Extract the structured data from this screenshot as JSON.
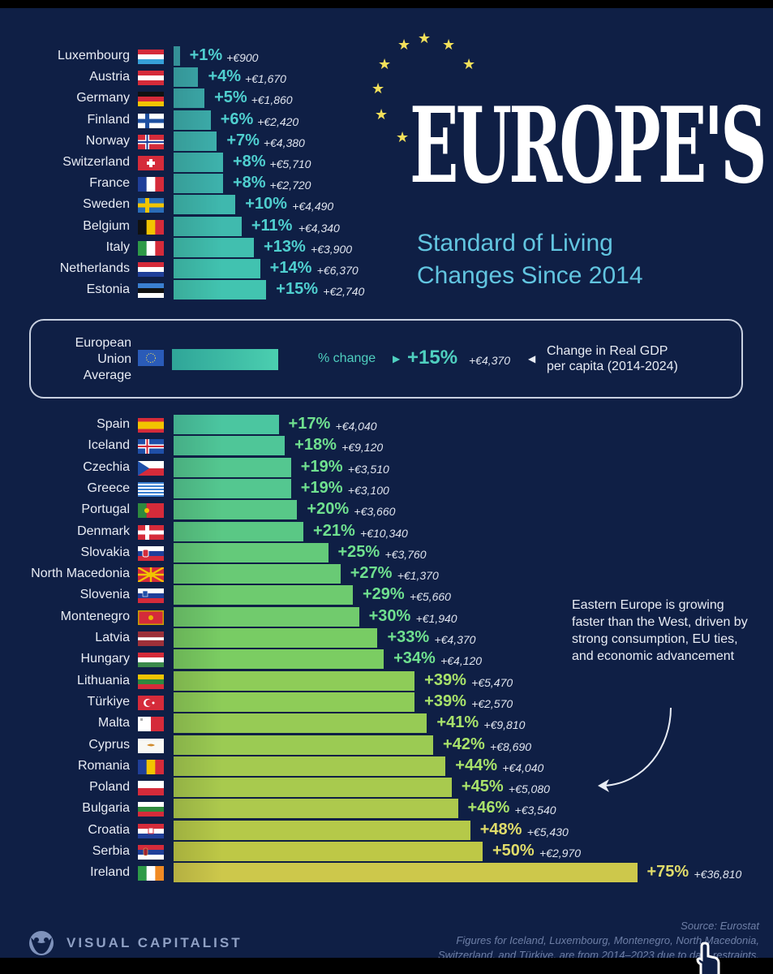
{
  "header": {
    "title": "EUROPE'S",
    "subtitle_line1": "Standard of Living",
    "subtitle_line2": "Changes Since 2014"
  },
  "eu_average": {
    "label_line1": "European",
    "label_line2": "Union",
    "label_line3": "Average",
    "pct_label": "% change",
    "pct": "+15%",
    "eur": "+€4,370",
    "description_line1": "Change in Real GDP",
    "description_line2": "per capita (2014-2024)",
    "value": 15
  },
  "annotation": {
    "text": "Eastern Europe is growing faster than the West, driven by strong consumption, EU ties, and economic advancement"
  },
  "footer": {
    "brand": "VISUAL CAPITALIST",
    "source": "Source: Eurostat",
    "note_line1": "Figures for Iceland, Luxembourg, Montenegro, North Macedonia,",
    "note_line2": "Switzerland, and Türkiye, are from 2014–2023 due to data restraints."
  },
  "colors": {
    "background": "#0f1f45",
    "teal": "#3bb8b0",
    "green": "#5cc98a",
    "yellow": "#c8c84a",
    "star": "#f3e05a",
    "subtitle": "#62c5e0"
  },
  "chart_data": {
    "type": "bar",
    "orientation": "horizontal",
    "title": "Europe's Standard of Living Changes Since 2014",
    "subtitle": "Change in Real GDP per capita (2014-2024)",
    "xlabel": "% change",
    "ylabel": "",
    "xlim": [
      0,
      75
    ],
    "grid": false,
    "reference": {
      "name": "European Union Average",
      "value": 15,
      "eur": "+€4,370"
    },
    "groups": [
      {
        "name": "below_average",
        "rows": [
          {
            "country": "Luxembourg",
            "flag": "lu",
            "value": 1,
            "pct": "+1%",
            "eur": "+€900"
          },
          {
            "country": "Austria",
            "flag": "at",
            "value": 4,
            "pct": "+4%",
            "eur": "+€1,670"
          },
          {
            "country": "Germany",
            "flag": "de",
            "value": 5,
            "pct": "+5%",
            "eur": "+€1,860"
          },
          {
            "country": "Finland",
            "flag": "fi",
            "value": 6,
            "pct": "+6%",
            "eur": "+€2,420"
          },
          {
            "country": "Norway",
            "flag": "no",
            "value": 7,
            "pct": "+7%",
            "eur": "+€4,380"
          },
          {
            "country": "Switzerland",
            "flag": "ch",
            "value": 8,
            "pct": "+8%",
            "eur": "+€5,710"
          },
          {
            "country": "France",
            "flag": "fr",
            "value": 8,
            "pct": "+8%",
            "eur": "+€2,720"
          },
          {
            "country": "Sweden",
            "flag": "se",
            "value": 10,
            "pct": "+10%",
            "eur": "+€4,490"
          },
          {
            "country": "Belgium",
            "flag": "be",
            "value": 11,
            "pct": "+11%",
            "eur": "+€4,340"
          },
          {
            "country": "Italy",
            "flag": "it",
            "value": 13,
            "pct": "+13%",
            "eur": "+€3,900"
          },
          {
            "country": "Netherlands",
            "flag": "nl",
            "value": 14,
            "pct": "+14%",
            "eur": "+€6,370"
          },
          {
            "country": "Estonia",
            "flag": "ee",
            "value": 15,
            "pct": "+15%",
            "eur": "+€2,740"
          }
        ]
      },
      {
        "name": "above_average",
        "rows": [
          {
            "country": "Spain",
            "flag": "es",
            "value": 17,
            "pct": "+17%",
            "eur": "+€4,040"
          },
          {
            "country": "Iceland",
            "flag": "is",
            "value": 18,
            "pct": "+18%",
            "eur": "+€9,120"
          },
          {
            "country": "Czechia",
            "flag": "cz",
            "value": 19,
            "pct": "+19%",
            "eur": "+€3,510"
          },
          {
            "country": "Greece",
            "flag": "gr",
            "value": 19,
            "pct": "+19%",
            "eur": "+€3,100"
          },
          {
            "country": "Portugal",
            "flag": "pt",
            "value": 20,
            "pct": "+20%",
            "eur": "+€3,660"
          },
          {
            "country": "Denmark",
            "flag": "dk",
            "value": 21,
            "pct": "+21%",
            "eur": "+€10,340"
          },
          {
            "country": "Slovakia",
            "flag": "sk",
            "value": 25,
            "pct": "+25%",
            "eur": "+€3,760"
          },
          {
            "country": "North Macedonia",
            "flag": "mk",
            "value": 27,
            "pct": "+27%",
            "eur": "+€1,370"
          },
          {
            "country": "Slovenia",
            "flag": "si",
            "value": 29,
            "pct": "+29%",
            "eur": "+€5,660"
          },
          {
            "country": "Montenegro",
            "flag": "me",
            "value": 30,
            "pct": "+30%",
            "eur": "+€1,940"
          },
          {
            "country": "Latvia",
            "flag": "lv",
            "value": 33,
            "pct": "+33%",
            "eur": "+€4,370"
          },
          {
            "country": "Hungary",
            "flag": "hu",
            "value": 34,
            "pct": "+34%",
            "eur": "+€4,120"
          },
          {
            "country": "Lithuania",
            "flag": "lt",
            "value": 39,
            "pct": "+39%",
            "eur": "+€5,470"
          },
          {
            "country": "Türkiye",
            "flag": "tr",
            "value": 39,
            "pct": "+39%",
            "eur": "+€2,570"
          },
          {
            "country": "Malta",
            "flag": "mt",
            "value": 41,
            "pct": "+41%",
            "eur": "+€9,810"
          },
          {
            "country": "Cyprus",
            "flag": "cy",
            "value": 42,
            "pct": "+42%",
            "eur": "+€8,690"
          },
          {
            "country": "Romania",
            "flag": "ro",
            "value": 44,
            "pct": "+44%",
            "eur": "+€4,040"
          },
          {
            "country": "Poland",
            "flag": "pl",
            "value": 45,
            "pct": "+45%",
            "eur": "+€5,080"
          },
          {
            "country": "Bulgaria",
            "flag": "bg",
            "value": 46,
            "pct": "+46%",
            "eur": "+€3,540"
          },
          {
            "country": "Croatia",
            "flag": "hr",
            "value": 48,
            "pct": "+48%",
            "eur": "+€5,430"
          },
          {
            "country": "Serbia",
            "flag": "rs",
            "value": 50,
            "pct": "+50%",
            "eur": "+€2,970"
          },
          {
            "country": "Ireland",
            "flag": "ie",
            "value": 75,
            "pct": "+75%",
            "eur": "+€36,810"
          }
        ]
      }
    ]
  }
}
